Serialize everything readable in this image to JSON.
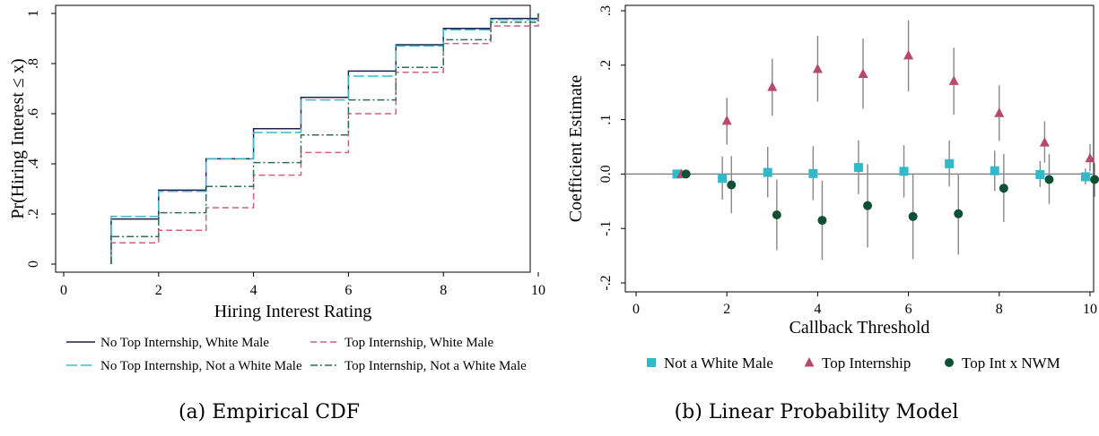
{
  "figure": {
    "caption_a": "(a) Empirical CDF",
    "caption_b": "(b) Linear Probability Model"
  },
  "chart_data": [
    {
      "type": "line",
      "step": true,
      "xlabel": "Hiring Interest Rating",
      "ylabel": "Pr(Hiring Interest ≤ x)",
      "xlim": [
        0,
        10
      ],
      "ylim": [
        0,
        1
      ],
      "xticks": [
        "0",
        "2",
        "4",
        "6",
        "8",
        "10"
      ],
      "yticks": [
        "0",
        ".2",
        ".4",
        ".6",
        ".8",
        "1"
      ],
      "grid": false,
      "legend_position": "bottom",
      "x": [
        1,
        2,
        3,
        4,
        5,
        6,
        7,
        8,
        9,
        10
      ],
      "series": [
        {
          "name": "No Top Internship, White Male",
          "color": "#1f1f4f",
          "dash": "solid",
          "values": [
            0.18,
            0.295,
            0.42,
            0.54,
            0.665,
            0.77,
            0.875,
            0.94,
            0.98,
            1.0
          ]
        },
        {
          "name": "Top Internship, White Male",
          "color": "#d45f7f",
          "dash": "dashed",
          "values": [
            0.085,
            0.135,
            0.225,
            0.355,
            0.445,
            0.6,
            0.765,
            0.88,
            0.95,
            1.0
          ]
        },
        {
          "name": "No Top Internship, Not a White Male",
          "color": "#3fb7c8",
          "dash": "longdash",
          "values": [
            0.19,
            0.29,
            0.42,
            0.525,
            0.655,
            0.75,
            0.87,
            0.935,
            0.975,
            1.0
          ]
        },
        {
          "name": "Top Internship, Not a White Male",
          "color": "#2d6e52",
          "dash": "dashdot",
          "values": [
            0.11,
            0.205,
            0.31,
            0.405,
            0.515,
            0.655,
            0.785,
            0.895,
            0.965,
            1.0
          ]
        }
      ]
    },
    {
      "type": "scatter",
      "errorbars": true,
      "xlabel": "Callback Threshold",
      "ylabel": "Coefficient Estimate",
      "xlim": [
        0,
        10
      ],
      "ylim": [
        -0.2,
        0.3
      ],
      "xticks": [
        "0",
        "2",
        "4",
        "6",
        "8",
        "10"
      ],
      "yticks": [
        "-.2",
        "-.1",
        "0.0",
        ".1",
        ".2",
        ".3"
      ],
      "reference_line": 0,
      "grid": false,
      "legend_position": "bottom",
      "x": [
        1,
        2,
        3,
        4,
        5,
        6,
        7,
        8,
        9,
        10
      ],
      "series": [
        {
          "name": "Not a White Male",
          "marker": "square",
          "color": "#30b9c9",
          "values": [
            0.0,
            -0.008,
            0.003,
            0.001,
            0.012,
            0.005,
            0.019,
            0.006,
            -0.001,
            -0.005
          ],
          "ci_low": [
            0.0,
            -0.047,
            -0.043,
            -0.048,
            -0.037,
            -0.043,
            -0.023,
            -0.031,
            -0.024,
            -0.019
          ],
          "ci_high": [
            0.0,
            0.032,
            0.05,
            0.051,
            0.062,
            0.053,
            0.062,
            0.043,
            0.024,
            0.01
          ]
        },
        {
          "name": "Top Internship",
          "marker": "triangle",
          "color": "#b8496a",
          "values": [
            0.0,
            0.098,
            0.16,
            0.193,
            0.184,
            0.218,
            0.171,
            0.112,
            0.058,
            0.029
          ],
          "ci_low": [
            0.0,
            0.054,
            0.107,
            0.133,
            0.12,
            0.152,
            0.109,
            0.061,
            0.021,
            0.005
          ],
          "ci_high": [
            0.0,
            0.14,
            0.212,
            0.254,
            0.249,
            0.282,
            0.232,
            0.163,
            0.097,
            0.055
          ]
        },
        {
          "name": "Top Int x NWM",
          "marker": "circle",
          "color": "#0f4f33",
          "values": [
            0.0,
            -0.02,
            -0.075,
            -0.085,
            -0.058,
            -0.078,
            -0.073,
            -0.026,
            -0.01,
            -0.01
          ],
          "ci_low": [
            0.0,
            -0.072,
            -0.14,
            -0.158,
            -0.135,
            -0.156,
            -0.148,
            -0.088,
            -0.055,
            -0.042
          ],
          "ci_high": [
            0.0,
            0.033,
            -0.01,
            -0.012,
            0.018,
            0.0,
            0.0,
            0.037,
            0.037,
            0.02
          ]
        }
      ]
    }
  ]
}
